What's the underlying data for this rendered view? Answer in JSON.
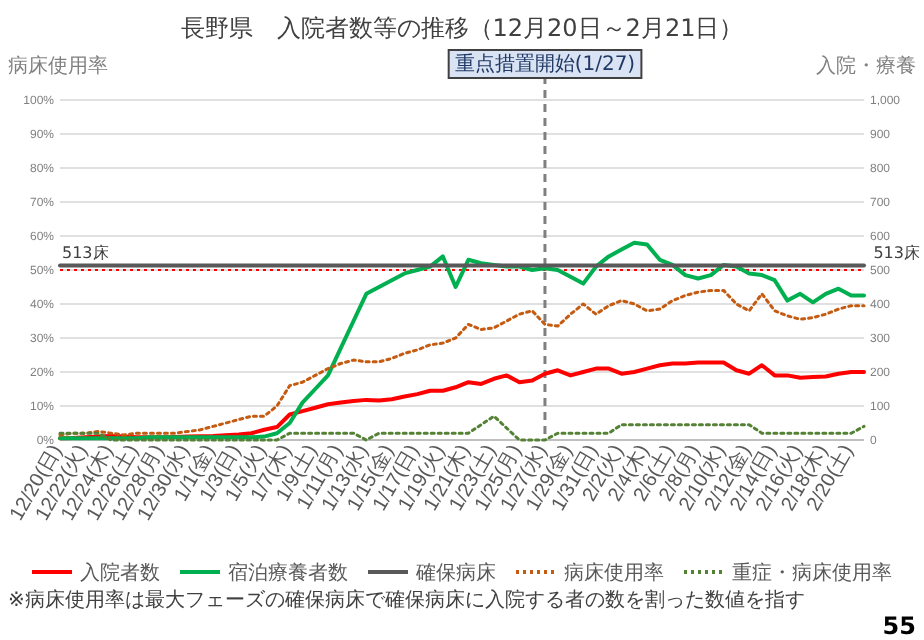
{
  "chart_data": {
    "type": "line",
    "title": "長野県　入院者数等の推移（12月20日～2月21日）",
    "ylabel": "病床使用率",
    "y2label": "入院・療養",
    "categories": [
      "12/20(日)",
      null,
      "12/22(火)",
      null,
      "12/24(木)",
      null,
      "12/26(土)",
      null,
      "12/28(月)",
      null,
      "12/30(水)",
      null,
      "1/1(金)",
      null,
      "1/3(日)",
      null,
      "1/5(火)",
      null,
      "1/7(木)",
      null,
      "1/9(土)",
      null,
      "1/11(月)",
      null,
      "1/13(水)",
      null,
      "1/15(金)",
      null,
      "1/17(日)",
      null,
      "1/19(火)",
      null,
      "1/21(木)",
      null,
      "1/23(土)",
      null,
      "1/25(月)",
      null,
      "1/27(水)",
      null,
      "1/29(金)",
      null,
      "1/31(日)",
      null,
      "2/2(火)",
      null,
      "2/4(木)",
      null,
      "2/6(土)",
      null,
      "2/8(月)",
      null,
      "2/10(水)",
      null,
      "2/12(金)",
      null,
      "2/14(日)",
      null,
      "2/16(火)",
      null,
      "2/18(木)",
      null,
      "2/20(土)",
      null
    ],
    "series": [
      {
        "name": "入院者数",
        "color": "#ff0000",
        "axis": "y2",
        "line_style": "solid",
        "values": [
          5,
          6,
          8,
          10,
          12,
          10,
          8,
          8,
          8,
          9,
          10,
          11,
          12,
          14,
          16,
          20,
          30,
          38,
          75,
          85,
          95,
          105,
          110,
          115,
          118,
          116,
          120,
          128,
          135,
          145,
          145,
          155,
          170,
          165,
          180,
          190,
          170,
          175,
          195,
          205,
          190,
          200,
          210,
          210,
          195,
          200,
          210,
          220,
          225,
          225,
          228,
          228,
          228,
          205,
          195,
          220,
          190,
          190,
          183,
          185,
          187,
          195,
          200,
          200
        ]
      },
      {
        "name": "宿泊療養者数",
        "color": "#00b050",
        "axis": "y2",
        "line_style": "solid",
        "values": [
          5,
          5,
          5,
          5,
          5,
          5,
          5,
          8,
          8,
          8,
          8,
          8,
          8,
          8,
          8,
          8,
          10,
          20,
          50,
          110,
          150,
          190,
          270,
          350,
          430,
          450,
          470,
          490,
          500,
          510,
          540,
          450,
          530,
          520,
          515,
          510,
          510,
          500,
          505,
          500,
          480,
          460,
          510,
          540,
          560,
          580,
          575,
          530,
          515,
          485,
          475,
          485,
          515,
          510,
          490,
          485,
          470,
          410,
          430,
          405,
          430,
          445,
          425,
          425
        ]
      },
      {
        "name": "確保病床",
        "color": "#595959",
        "axis": "y2",
        "line_style": "solid",
        "values": [
          513,
          513,
          513,
          513,
          513,
          513,
          513,
          513,
          513,
          513,
          513,
          513,
          513,
          513,
          513,
          513,
          513,
          513,
          513,
          513,
          513,
          513,
          513,
          513,
          513,
          513,
          513,
          513,
          513,
          513,
          513,
          513,
          513,
          513,
          513,
          513,
          513,
          513,
          513,
          513,
          513,
          513,
          513,
          513,
          513,
          513,
          513,
          513,
          513,
          513,
          513,
          513,
          513,
          513,
          513,
          513,
          513,
          513,
          513,
          513,
          513,
          513,
          513,
          513
        ]
      },
      {
        "name": "病床使用率",
        "color": "#c55a11",
        "axis": "y",
        "line_style": "dotted",
        "values": [
          1.5,
          2,
          2,
          2.5,
          2,
          1.5,
          2,
          2,
          2,
          2,
          2.5,
          3,
          4,
          5,
          6,
          7,
          7,
          10,
          16,
          17,
          19,
          21,
          22.5,
          23.5,
          23,
          23,
          24,
          25.5,
          26.5,
          28,
          28.5,
          30,
          34,
          32.5,
          33,
          35,
          37,
          38,
          34,
          33.5,
          37,
          40,
          37,
          39.5,
          41,
          40,
          38,
          38.5,
          41,
          42.5,
          43.5,
          44,
          44,
          40,
          38,
          43,
          38,
          36.5,
          35.5,
          36,
          37,
          38.5,
          39.5,
          39.5
        ]
      },
      {
        "name": "重症・病床使用率",
        "color": "#548235",
        "axis": "y",
        "line_style": "dotted",
        "values": [
          2,
          2,
          2,
          2,
          0,
          0,
          0,
          0,
          0,
          0,
          0,
          0,
          0,
          0,
          0,
          0,
          0,
          0,
          2,
          2,
          2,
          2,
          2,
          2,
          0,
          2,
          2,
          2,
          2,
          2,
          2,
          2,
          2,
          4.5,
          7,
          3.5,
          0,
          0,
          0,
          2,
          2,
          2,
          2,
          2,
          4.5,
          4.5,
          4.5,
          4.5,
          4.5,
          4.5,
          4.5,
          4.5,
          4.5,
          4.5,
          4.5,
          2,
          2,
          2,
          2,
          2,
          2,
          2,
          2,
          4
        ]
      }
    ],
    "ylim": [
      0,
      100
    ],
    "yticks": [
      {
        "value": 0,
        "label": "0%"
      },
      {
        "value": 10,
        "label": "10%"
      },
      {
        "value": 20,
        "label": "20%"
      },
      {
        "value": 30,
        "label": "30%"
      },
      {
        "value": 40,
        "label": "40%"
      },
      {
        "value": 50,
        "label": "50%"
      },
      {
        "value": 60,
        "label": "60%"
      },
      {
        "value": 70,
        "label": "70%"
      },
      {
        "value": 80,
        "label": "80%"
      },
      {
        "value": 90,
        "label": "90%"
      },
      {
        "value": 100,
        "label": "100%"
      }
    ],
    "y2lim": [
      0,
      1000
    ],
    "y2ticks": [
      0,
      100,
      200,
      300,
      400,
      500,
      600,
      700,
      800,
      900,
      {
        "value": 1000,
        "label": "1,000"
      }
    ],
    "grid": "y",
    "legend": "bottom",
    "ref_lines": [
      {
        "axis": "y",
        "value": 50,
        "color": "#ff0000",
        "line_style": "dotted"
      },
      {
        "axis": "x",
        "value": "1/27(水)",
        "label": "重点措置開始(1/27)",
        "color": "#7f7f7f",
        "line_style": "dashed"
      }
    ],
    "annotations": [
      "513床",
      "513床",
      "※病床使用率は最大フェーズの確保病床で確保病床に入院する者の数を割った数値を指す",
      "55"
    ]
  }
}
